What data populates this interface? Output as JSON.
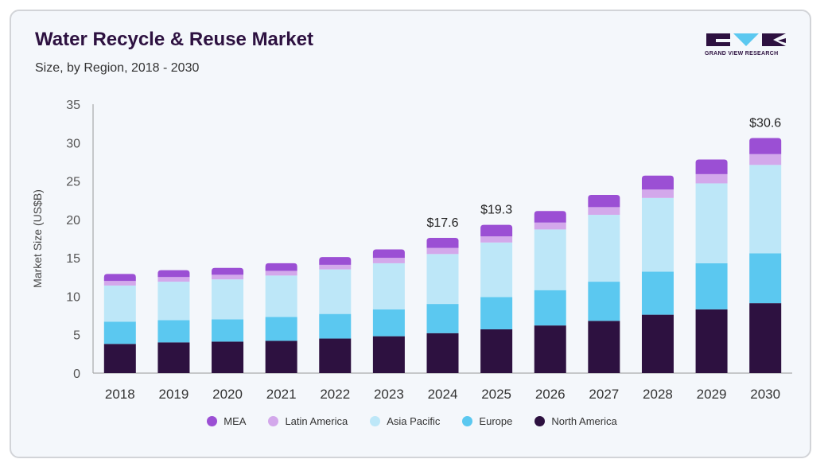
{
  "header": {
    "title": "Water Recycle & Reuse Market",
    "subtitle": "Size, by Region, 2018 - 2030"
  },
  "logo": {
    "text": "GRAND VIEW RESEARCH",
    "color": "#2d1140",
    "accent": "#5bc8f0"
  },
  "chart_data": {
    "type": "bar",
    "stacked": true,
    "title": "Water Recycle & Reuse Market",
    "subtitle": "Size, by Region, 2018 - 2030",
    "xlabel": "",
    "ylabel": "Market Size (US$B)",
    "ylim": [
      0,
      35
    ],
    "yticks": [
      "0",
      "5",
      "10",
      "15",
      "20",
      "25",
      "30",
      "35"
    ],
    "categories": [
      "2018",
      "2019",
      "2020",
      "2021",
      "2022",
      "2023",
      "2024",
      "2025",
      "2026",
      "2027",
      "2028",
      "2029",
      "2030"
    ],
    "series": [
      {
        "name": "North America",
        "color": "#2d1140",
        "values": [
          3.8,
          4.0,
          4.1,
          4.2,
          4.5,
          4.8,
          5.2,
          5.7,
          6.2,
          6.8,
          7.6,
          8.3,
          9.1
        ]
      },
      {
        "name": "Europe",
        "color": "#5bc8f0",
        "values": [
          2.9,
          2.9,
          2.9,
          3.1,
          3.2,
          3.5,
          3.8,
          4.2,
          4.6,
          5.1,
          5.6,
          6.0,
          6.5
        ]
      },
      {
        "name": "Asia Pacific",
        "color": "#bde7f8",
        "values": [
          4.7,
          5.0,
          5.2,
          5.4,
          5.8,
          6.0,
          6.5,
          7.1,
          7.9,
          8.7,
          9.6,
          10.4,
          11.5
        ]
      },
      {
        "name": "Latin America",
        "color": "#d3a8eb",
        "values": [
          0.6,
          0.6,
          0.6,
          0.6,
          0.6,
          0.7,
          0.8,
          0.8,
          0.9,
          1.0,
          1.1,
          1.2,
          1.4
        ]
      },
      {
        "name": "MEA",
        "color": "#9b4fd4",
        "values": [
          0.9,
          0.9,
          0.9,
          1.0,
          1.0,
          1.1,
          1.3,
          1.5,
          1.5,
          1.6,
          1.8,
          1.9,
          2.1
        ]
      }
    ],
    "legend_order": [
      "MEA",
      "Latin America",
      "Asia Pacific",
      "Europe",
      "North America"
    ],
    "legend_position": "bottom",
    "annotations": [
      {
        "category": "2024",
        "text": "$17.6"
      },
      {
        "category": "2025",
        "text": "$19.3"
      },
      {
        "category": "2030",
        "text": "$30.6"
      }
    ],
    "grid": false
  }
}
